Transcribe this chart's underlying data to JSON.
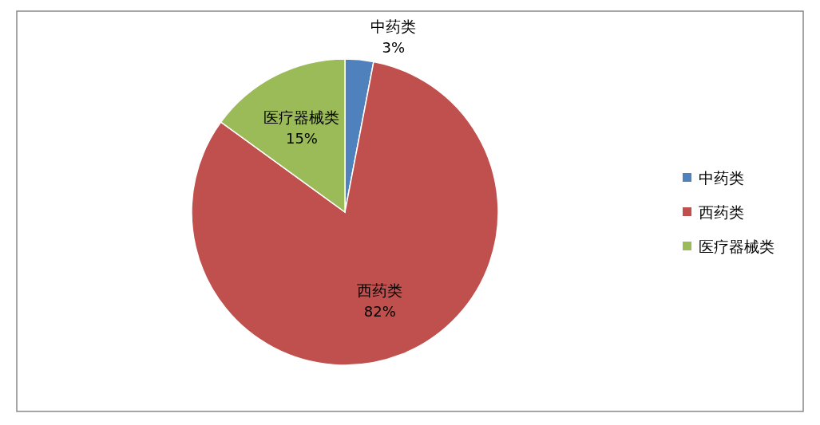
{
  "chart_data": {
    "type": "pie",
    "categories": [
      "中药类",
      "西药类",
      "医疗器械类"
    ],
    "values": [
      3,
      82,
      15
    ],
    "colors": [
      "#4f81bd",
      "#c0504d",
      "#9bbb59"
    ],
    "value_labels": [
      "3%",
      "82%",
      "15%"
    ],
    "legend": "right"
  }
}
